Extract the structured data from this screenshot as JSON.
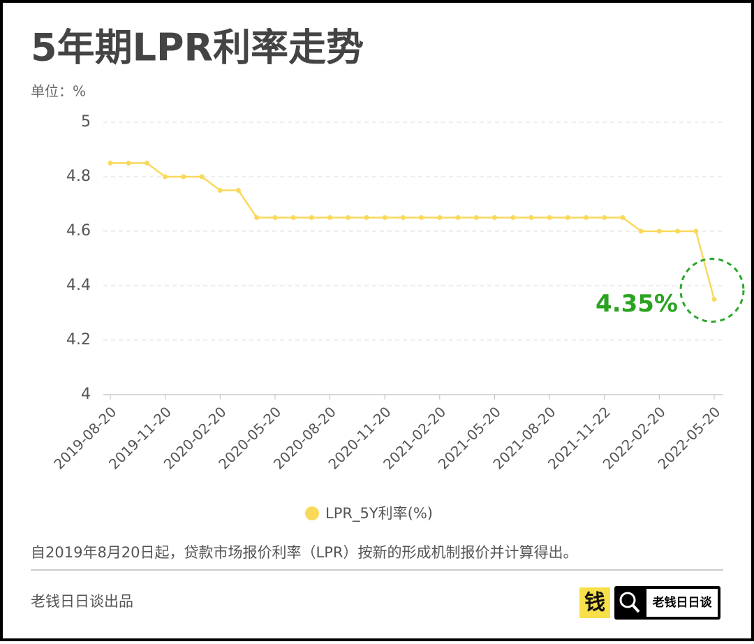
{
  "chart_data": {
    "type": "line",
    "title": "5年期LPR利率走势",
    "unit_label": "单位：%",
    "categories": [
      "2019-08-20",
      null,
      null,
      "2019-11-20",
      null,
      null,
      "2020-02-20",
      null,
      null,
      "2020-05-20",
      null,
      null,
      "2020-08-20",
      null,
      null,
      "2020-11-20",
      null,
      null,
      "2021-02-20",
      null,
      null,
      "2021-05-20",
      null,
      null,
      "2021-08-20",
      null,
      null,
      "2021-11-22",
      null,
      null,
      "2022-02-20",
      null,
      null,
      "2022-05-20"
    ],
    "series": [
      {
        "name": "LPR_5Y利率(%)",
        "color": "#f9d95c",
        "values": [
          4.85,
          4.85,
          4.85,
          4.8,
          4.8,
          4.8,
          4.75,
          4.75,
          4.65,
          4.65,
          4.65,
          4.65,
          4.65,
          4.65,
          4.65,
          4.65,
          4.65,
          4.65,
          4.65,
          4.65,
          4.65,
          4.65,
          4.65,
          4.65,
          4.65,
          4.65,
          4.65,
          4.65,
          4.65,
          4.6,
          4.6,
          4.6,
          4.6,
          4.35
        ],
        "value_labels": [
          null,
          null,
          null,
          null,
          null,
          null,
          null,
          null,
          null,
          null,
          null,
          null,
          null,
          null,
          null,
          null,
          null,
          null,
          null,
          null,
          null,
          null,
          null,
          null,
          null,
          null,
          null,
          null,
          null,
          null,
          null,
          null,
          null,
          "4.35%"
        ]
      }
    ],
    "ylim": [
      4,
      5
    ],
    "yticks": [
      4,
      4.2,
      4.4,
      4.6,
      4.8,
      5
    ],
    "grid": true,
    "footnote": "自2019年8月20日起，贷款市场报价利率（LPR）按新的形成机制报价并计算得出。",
    "source": "老钱日日谈出品",
    "logo_icon": "钱",
    "logo_text": "老钱日日谈"
  }
}
